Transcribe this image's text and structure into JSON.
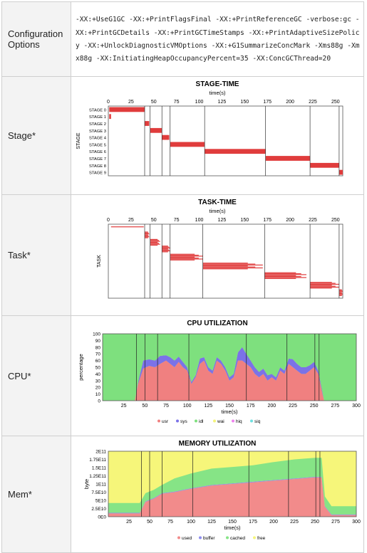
{
  "rows": {
    "config": {
      "label": "Configuration Options",
      "text": "-XX:+UseG1GC -XX:+PrintFlagsFinal -XX:+PrintReferenceGC -verbose:gc -XX:+PrintGCDetails -XX:+PrintGCTimeStamps -XX:+PrintAdaptiveSizePolicy -XX:+UnlockDiagnosticVMOptions -XX:+G1SummarizeConcMark -Xms88g -Xmx88g -XX:InitiatingHeapOccupancyPercent=35 -XX:ConcGCThread=20"
    },
    "stage_label": "Stage*",
    "task_label": "Task*",
    "cpu_label": "CPU*",
    "mem_label": "Mem*"
  },
  "colors": {
    "bar_red": "#e03c3c",
    "usr": "#f08080",
    "sys": "#7b72e8",
    "idl": "#7ee07e",
    "wai": "#f4f47a",
    "hiq": "#ee82ee",
    "siq": "#6fe0e0",
    "used": "#f28b8b",
    "buffer": "#8c8cf0",
    "cached": "#86e486",
    "free": "#f6f67a"
  },
  "chart_data": [
    {
      "type": "bar",
      "title": "STAGE-TIME",
      "xlabel": "time(s)",
      "ylabel": "STAGE",
      "xlim": [
        0,
        258
      ],
      "xticks": [
        "0",
        "25",
        "50",
        "75",
        "100",
        "125",
        "150",
        "175",
        "200",
        "225",
        "250"
      ],
      "categories": [
        "STAGE 0",
        "STAGE 1",
        "STAGE 2",
        "STAGE 3",
        "STAGE 4",
        "STAGE 5",
        "STAGE 6",
        "STAGE 7",
        "STAGE 8",
        "STAGE 9"
      ],
      "intervals": [
        [
          1,
          40
        ],
        [
          1,
          3
        ],
        [
          40,
          45
        ],
        [
          46,
          59
        ],
        [
          59,
          67
        ],
        [
          68,
          106
        ],
        [
          106,
          173
        ],
        [
          173,
          222
        ],
        [
          222,
          254
        ],
        [
          254,
          258
        ]
      ]
    },
    {
      "type": "bar",
      "title": "TASK-TIME",
      "xlabel": "time(s)",
      "ylabel": "TASK",
      "xlim": [
        0,
        258
      ],
      "xticks": [
        "0",
        "25",
        "50",
        "75",
        "100",
        "125",
        "150",
        "175",
        "200",
        "225",
        "250"
      ],
      "groups": [
        {
          "start": 3,
          "end": 39,
          "y": 0.03
        },
        {
          "start": 40,
          "end": 45,
          "y": 0.1
        },
        {
          "start": 46,
          "end": 57,
          "y": 0.2
        },
        {
          "start": 59,
          "end": 68,
          "y": 0.29
        },
        {
          "start": 68,
          "end": 104,
          "y": 0.4
        },
        {
          "start": 104,
          "end": 170,
          "y": 0.52
        },
        {
          "start": 172,
          "end": 218,
          "y": 0.65
        },
        {
          "start": 222,
          "end": 254,
          "y": 0.78
        },
        {
          "start": 254,
          "end": 258,
          "y": 0.88
        }
      ]
    },
    {
      "type": "area",
      "title": "CPU UTILIZATION",
      "xlabel": "time(s)",
      "ylabel": "percentage",
      "xlim": [
        0,
        300
      ],
      "ylim": [
        0,
        100
      ],
      "xticks": [
        "25",
        "50",
        "75",
        "100",
        "125",
        "150",
        "175",
        "200",
        "225",
        "250",
        "275",
        "300"
      ],
      "yticks": [
        "0",
        "10",
        "20",
        "30",
        "40",
        "50",
        "60",
        "70",
        "80",
        "90",
        "100"
      ],
      "legend": [
        "usr",
        "sys",
        "idl",
        "wai",
        "hiq",
        "siq"
      ],
      "x": [
        0,
        38,
        42,
        48,
        55,
        62,
        68,
        75,
        80,
        85,
        90,
        95,
        100,
        105,
        110,
        115,
        120,
        125,
        130,
        135,
        140,
        145,
        150,
        155,
        160,
        165,
        170,
        175,
        180,
        185,
        190,
        195,
        200,
        205,
        210,
        215,
        220,
        225,
        230,
        235,
        240,
        245,
        250,
        255,
        260,
        262,
        270,
        300
      ],
      "series": [
        {
          "name": "usr",
          "values": [
            0,
            0,
            25,
            48,
            52,
            50,
            55,
            60,
            55,
            50,
            58,
            50,
            45,
            25,
            35,
            55,
            60,
            45,
            40,
            60,
            55,
            45,
            30,
            35,
            60,
            60,
            55,
            50,
            40,
            35,
            40,
            30,
            35,
            30,
            45,
            40,
            55,
            50,
            45,
            40,
            40,
            45,
            50,
            40,
            10,
            0,
            0,
            0
          ]
        },
        {
          "name": "sys",
          "values": [
            0,
            0,
            3,
            12,
            10,
            10,
            12,
            8,
            10,
            10,
            8,
            8,
            5,
            3,
            3,
            8,
            5,
            5,
            5,
            5,
            5,
            5,
            5,
            5,
            12,
            20,
            15,
            10,
            10,
            8,
            8,
            8,
            5,
            5,
            5,
            5,
            8,
            12,
            10,
            10,
            10,
            8,
            8,
            5,
            3,
            0,
            0,
            0
          ]
        }
      ]
    },
    {
      "type": "area",
      "title": "MEMORY UTILIZATION",
      "xlabel": "time(s)",
      "ylabel": "byte",
      "xlim": [
        0,
        300
      ],
      "ylim": [
        0,
        200000000000.0
      ],
      "xticks": [
        "25",
        "50",
        "75",
        "100",
        "125",
        "150",
        "175",
        "200",
        "225",
        "250",
        "275",
        "300"
      ],
      "yticks": [
        "0E0",
        "2.5E10",
        "5E10",
        "7.5E10",
        "1E11",
        "1.25E11",
        "1.5E11",
        "1.75E11",
        "2E11"
      ],
      "legend": [
        "used",
        "buffer",
        "cached",
        "free"
      ],
      "x": [
        0,
        38,
        45,
        55,
        65,
        80,
        100,
        125,
        150,
        175,
        200,
        225,
        250,
        258,
        262,
        270,
        300
      ],
      "series": [
        {
          "name": "used",
          "values": [
            10000000000.0,
            10000000000.0,
            45000000000.0,
            55000000000.0,
            70000000000.0,
            75000000000.0,
            85000000000.0,
            95000000000.0,
            100000000000.0,
            105000000000.0,
            110000000000.0,
            115000000000.0,
            120000000000.0,
            120000000000.0,
            30000000000.0,
            5000000000.0,
            5000000000.0
          ]
        },
        {
          "name": "buffer",
          "values": [
            2000000000.0,
            2000000000.0,
            2000000000.0,
            2000000000.0,
            2000000000.0,
            2000000000.0,
            2000000000.0,
            2000000000.0,
            2000000000.0,
            2000000000.0,
            2000000000.0,
            2000000000.0,
            2000000000.0,
            2000000000.0,
            2000000000.0,
            2000000000.0,
            2000000000.0
          ]
        },
        {
          "name": "cached",
          "values": [
            30000000000.0,
            30000000000.0,
            25000000000.0,
            25000000000.0,
            25000000000.0,
            40000000000.0,
            45000000000.0,
            50000000000.0,
            50000000000.0,
            50000000000.0,
            55000000000.0,
            58000000000.0,
            58000000000.0,
            58000000000.0,
            30000000000.0,
            25000000000.0,
            25000000000.0
          ]
        }
      ]
    }
  ]
}
